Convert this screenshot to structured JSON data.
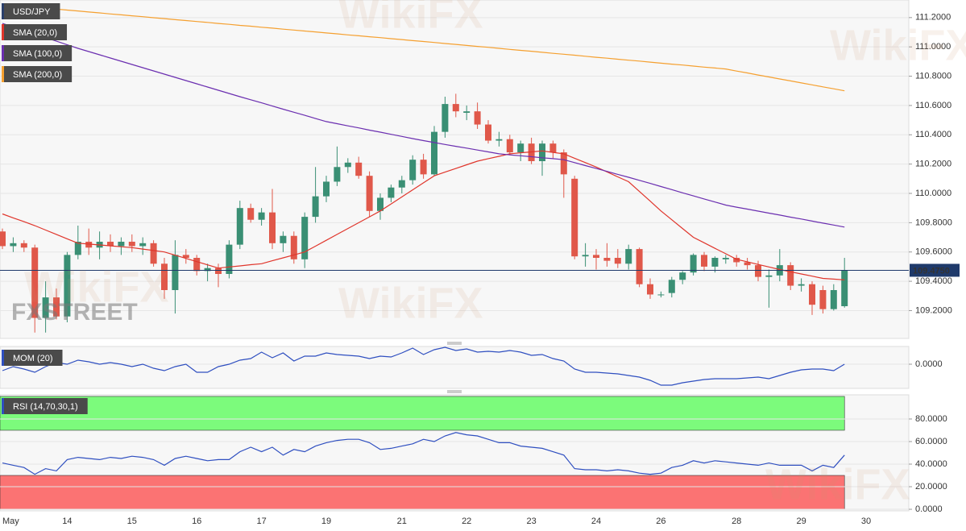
{
  "watermark": "WikiFX",
  "logo": "FXSTREET",
  "chart_data": [
    {
      "type": "candlestick",
      "categories": [
        "May",
        null,
        null,
        null,
        null,
        null,
        "14",
        null,
        null,
        null,
        null,
        null,
        "15",
        null,
        null,
        null,
        null,
        null,
        "16",
        null,
        null,
        null,
        null,
        null,
        "17",
        null,
        null,
        null,
        null,
        null,
        "19",
        null,
        null,
        null,
        null,
        null,
        null,
        "21",
        null,
        null,
        null,
        null,
        null,
        "22",
        null,
        null,
        null,
        null,
        null,
        "23",
        null,
        null,
        null,
        null,
        null,
        "24",
        null,
        null,
        null,
        null,
        null,
        "26",
        null,
        null,
        null,
        null,
        null,
        null,
        "28",
        null,
        null,
        null,
        null,
        null,
        "29",
        null,
        null,
        null,
        null,
        null,
        "30"
      ],
      "series": [
        {
          "name": "USD/JPY",
          "type": "candlestick",
          "color": "#2a3f6a",
          "up_color": "#3a8f74",
          "down_color": "#e0584a",
          "open": [
            109.74,
            109.64,
            109.66,
            109.63,
            109.15,
            109.29,
            109.16,
            109.58,
            109.67,
            109.63,
            109.67,
            109.64,
            109.67,
            109.64,
            109.66,
            109.52,
            109.34,
            109.58,
            109.56,
            109.47,
            109.49,
            109.45,
            109.65,
            109.9,
            109.82,
            109.87,
            109.66,
            109.71,
            109.55,
            109.84,
            109.98,
            110.08,
            110.18,
            110.21,
            110.12,
            109.88,
            109.97,
            110.04,
            110.09,
            110.23,
            110.13,
            110.42,
            110.61,
            110.55,
            110.56,
            110.47,
            110.36,
            110.37,
            110.28,
            110.34,
            110.22,
            110.34,
            110.28,
            110.1,
            109.57,
            109.58,
            109.56,
            109.56,
            109.52,
            109.62,
            109.38,
            109.31,
            109.32,
            109.41,
            109.46,
            109.58,
            109.5,
            109.55,
            109.56,
            109.53,
            109.51,
            109.43,
            109.44,
            109.51,
            109.37,
            109.38,
            109.34,
            109.21,
            109.23,
            null,
            null
          ],
          "high": [
            109.76,
            109.7,
            109.68,
            109.65,
            109.4,
            109.35,
            109.6,
            109.78,
            109.76,
            109.74,
            109.72,
            109.7,
            109.72,
            109.7,
            109.68,
            109.56,
            109.68,
            109.62,
            109.58,
            109.52,
            109.52,
            109.68,
            109.95,
            109.93,
            109.9,
            110.03,
            109.74,
            109.74,
            109.87,
            110.18,
            110.12,
            110.32,
            110.24,
            110.25,
            110.15,
            110.0,
            110.06,
            110.12,
            110.26,
            110.27,
            110.46,
            110.66,
            110.68,
            110.6,
            110.62,
            110.5,
            110.42,
            110.4,
            110.36,
            110.38,
            110.36,
            110.36,
            110.3,
            110.12,
            109.66,
            109.62,
            109.66,
            109.62,
            109.65,
            109.63,
            109.42,
            109.33,
            109.43,
            109.47,
            109.59,
            109.6,
            109.57,
            109.58,
            109.58,
            109.56,
            109.54,
            109.48,
            109.62,
            109.53,
            109.42,
            109.4,
            109.37,
            109.38,
            109.56,
            null,
            null
          ],
          "low": [
            109.62,
            109.6,
            109.6,
            109.05,
            109.05,
            109.14,
            109.12,
            109.55,
            109.58,
            109.55,
            109.6,
            109.58,
            109.6,
            109.58,
            109.5,
            109.28,
            109.18,
            109.52,
            109.44,
            109.4,
            109.36,
            109.42,
            109.62,
            109.8,
            109.78,
            109.62,
            109.6,
            109.52,
            109.49,
            109.8,
            109.94,
            110.05,
            110.14,
            110.1,
            109.84,
            109.82,
            109.94,
            110.0,
            110.06,
            110.1,
            110.12,
            110.38,
            110.52,
            110.5,
            110.44,
            110.34,
            110.32,
            110.26,
            110.22,
            110.2,
            110.12,
            110.24,
            109.97,
            109.55,
            109.5,
            109.48,
            109.5,
            109.49,
            109.48,
            109.36,
            109.28,
            109.29,
            109.29,
            109.38,
            109.44,
            109.47,
            109.46,
            109.52,
            109.5,
            109.48,
            109.4,
            109.22,
            109.4,
            109.34,
            109.33,
            109.17,
            109.18,
            109.2,
            109.22,
            null,
            null
          ],
          "close": [
            109.64,
            109.66,
            109.63,
            109.15,
            109.29,
            109.16,
            109.58,
            109.67,
            109.63,
            109.67,
            109.64,
            109.67,
            109.64,
            109.66,
            109.52,
            109.34,
            109.58,
            109.56,
            109.47,
            109.49,
            109.45,
            109.65,
            109.9,
            109.82,
            109.87,
            109.66,
            109.71,
            109.55,
            109.84,
            109.98,
            110.08,
            110.18,
            110.21,
            110.12,
            109.88,
            109.97,
            110.04,
            110.09,
            110.23,
            110.13,
            110.42,
            110.61,
            110.56,
            110.56,
            110.47,
            110.36,
            110.37,
            110.28,
            110.34,
            110.22,
            110.34,
            110.28,
            110.13,
            109.57,
            109.58,
            109.56,
            109.54,
            109.52,
            109.62,
            109.38,
            109.31,
            109.31,
            109.41,
            109.46,
            109.58,
            109.5,
            109.56,
            109.56,
            109.53,
            109.51,
            109.43,
            109.44,
            109.51,
            109.37,
            109.38,
            109.24,
            109.21,
            109.34,
            109.475,
            null,
            null
          ]
        },
        {
          "name": "SMA (20,0)",
          "type": "line",
          "color": "#e0362c",
          "values": [
            109.86,
            109.833,
            109.807,
            109.78,
            109.75,
            109.72,
            109.69,
            109.66,
            109.654,
            109.648,
            109.642,
            109.636,
            109.63,
            109.62,
            109.61,
            109.6,
            109.578,
            109.556,
            109.534,
            109.512,
            109.49,
            109.498,
            109.505,
            109.513,
            109.52,
            109.54,
            109.56,
            109.58,
            109.6,
            109.64,
            109.68,
            109.72,
            109.76,
            109.8,
            109.84,
            109.88,
            109.928,
            109.976,
            110.024,
            110.072,
            110.12,
            110.145,
            110.17,
            110.195,
            110.22,
            110.237,
            110.253,
            110.27,
            110.277,
            110.283,
            110.29,
            110.28,
            110.27,
            110.24,
            110.21,
            110.18,
            110.147,
            110.113,
            110.08,
            110.013,
            109.947,
            109.88,
            109.82,
            109.76,
            109.7,
            109.663,
            109.625,
            109.588,
            109.55,
            109.533,
            109.515,
            109.498,
            109.48,
            109.465,
            109.45,
            109.435,
            109.42,
            109.415,
            109.41,
            null,
            null
          ]
        },
        {
          "name": "SMA (100,0)",
          "type": "line",
          "color": "#6b2fb0",
          "values": [
            111.16,
            111.136,
            111.111,
            111.087,
            111.063,
            111.039,
            111.014,
            110.99,
            110.968,
            110.946,
            110.924,
            110.902,
            110.88,
            110.858,
            110.836,
            110.814,
            110.792,
            110.77,
            110.748,
            110.726,
            110.704,
            110.682,
            110.66,
            110.639,
            110.618,
            110.596,
            110.575,
            110.554,
            110.533,
            110.511,
            110.49,
            110.476,
            110.461,
            110.447,
            110.432,
            110.418,
            110.403,
            110.389,
            110.374,
            110.36,
            110.347,
            110.334,
            110.321,
            110.309,
            110.296,
            110.283,
            110.27,
            110.263,
            110.257,
            110.25,
            110.243,
            110.237,
            110.23,
            110.21,
            110.19,
            110.17,
            110.15,
            110.13,
            110.11,
            110.089,
            110.068,
            110.047,
            110.026,
            110.004,
            109.983,
            109.962,
            109.941,
            109.92,
            109.906,
            109.893,
            109.879,
            109.865,
            109.852,
            109.838,
            109.825,
            109.811,
            109.797,
            109.784,
            109.77,
            null,
            null
          ]
        },
        {
          "name": "SMA (200,0)",
          "type": "line",
          "color": "#f5a030",
          "values": [
            111.29,
            111.284,
            111.277,
            111.271,
            111.264,
            111.258,
            111.251,
            111.245,
            111.238,
            111.232,
            111.225,
            111.219,
            111.212,
            111.206,
            111.199,
            111.193,
            111.186,
            111.18,
            111.173,
            111.167,
            111.16,
            111.154,
            111.147,
            111.141,
            111.134,
            111.128,
            111.121,
            111.115,
            111.108,
            111.102,
            111.095,
            111.089,
            111.082,
            111.076,
            111.069,
            111.063,
            111.056,
            111.05,
            111.043,
            111.037,
            111.03,
            111.023,
            111.017,
            111.01,
            111.003,
            110.997,
            110.99,
            110.983,
            110.976,
            110.97,
            110.963,
            110.956,
            110.95,
            110.943,
            110.936,
            110.929,
            110.923,
            110.916,
            110.909,
            110.903,
            110.896,
            110.889,
            110.882,
            110.876,
            110.869,
            110.862,
            110.856,
            110.849,
            110.835,
            110.822,
            110.808,
            110.795,
            110.781,
            110.768,
            110.754,
            110.741,
            110.727,
            110.714,
            110.7,
            null,
            null
          ]
        }
      ],
      "last_price": {
        "value": 109.475,
        "label": "109.4750",
        "color": "#1f3a6b"
      },
      "ylim": [
        109.01,
        111.32
      ],
      "yticks": [
        {
          "value": 109.2,
          "label": "109.2000"
        },
        {
          "value": 109.4,
          "label": "109.4000"
        },
        {
          "value": 109.6,
          "label": "109.6000"
        },
        {
          "value": 109.8,
          "label": "109.8000"
        },
        {
          "value": 110.0,
          "label": "110.0000"
        },
        {
          "value": 110.2,
          "label": "110.2000"
        },
        {
          "value": 110.4,
          "label": "110.4000"
        },
        {
          "value": 110.6,
          "label": "110.6000"
        },
        {
          "value": 110.8,
          "label": "110.8000"
        },
        {
          "value": 111.0,
          "label": "111.0000"
        },
        {
          "value": 111.2,
          "label": "111.2000"
        }
      ],
      "grid": true
    },
    {
      "type": "line",
      "series": [
        {
          "name": "MOM (20)",
          "color": "#2f4fc0",
          "values": [
            -0.4,
            -0.15,
            -0.3,
            -0.5,
            -0.15,
            0.1,
            0,
            0.25,
            0.15,
            0,
            0.1,
            0,
            -0.15,
            0,
            -0.25,
            -0.4,
            -0.15,
            0,
            -0.5,
            -0.5,
            -0.15,
            0,
            0.25,
            0.35,
            0.75,
            0.4,
            0.7,
            0.2,
            0.5,
            0.5,
            0.7,
            0.6,
            0.55,
            0.5,
            0.35,
            0.5,
            0.45,
            0.7,
            1.0,
            0.6,
            0.9,
            1.05,
            0.85,
            0.95,
            0.75,
            0.8,
            0.75,
            0.85,
            0.75,
            0.55,
            0.6,
            0.35,
            0.2,
            -0.3,
            -0.5,
            -0.5,
            -0.55,
            -0.6,
            -0.7,
            -0.8,
            -1.0,
            -1.3,
            -1.3,
            -1.15,
            -1.05,
            -0.95,
            -0.9,
            -0.9,
            -0.9,
            -0.85,
            -0.8,
            -0.9,
            -0.7,
            -0.5,
            -0.35,
            -0.3,
            -0.3,
            -0.4,
            0,
            null,
            null
          ]
        }
      ],
      "ylim": [
        -1.5,
        1.1
      ],
      "yticks": [
        {
          "value": 0,
          "label": "0.0000"
        }
      ],
      "grid": true
    },
    {
      "type": "line",
      "series": [
        {
          "name": "RSI (14,70,30,1)",
          "color": "#2f4fc0",
          "values": [
            41,
            39,
            37,
            31,
            36,
            34,
            44,
            46,
            45,
            44,
            46,
            45,
            47,
            46,
            44,
            39,
            45,
            47,
            45,
            43,
            44,
            44,
            51,
            55,
            51,
            55,
            48,
            53,
            51,
            56,
            59,
            61,
            62,
            62,
            59,
            53,
            54,
            56,
            58,
            62,
            60,
            65,
            68,
            66,
            65,
            62,
            59,
            59,
            56,
            55,
            54,
            51,
            48,
            36,
            35,
            35,
            34,
            35,
            34,
            32,
            31,
            32,
            37,
            39,
            43,
            41,
            43,
            42,
            41,
            40,
            39,
            41,
            39,
            39,
            39,
            34,
            39,
            37,
            48,
            null,
            null
          ]
        }
      ],
      "bands": [
        {
          "from": 70,
          "to": 100,
          "color": "#7cfb7c"
        },
        {
          "from": 0,
          "to": 30,
          "color": "#fb7373"
        }
      ],
      "ylim": [
        -1.4,
        101.4
      ],
      "yticks": [
        {
          "value": 0,
          "label": "0.0000"
        },
        {
          "value": 20,
          "label": "20.0000"
        },
        {
          "value": 40,
          "label": "40.0000"
        },
        {
          "value": 60,
          "label": "60.0000"
        },
        {
          "value": 80,
          "label": "80.0000"
        }
      ],
      "grid": true
    }
  ]
}
